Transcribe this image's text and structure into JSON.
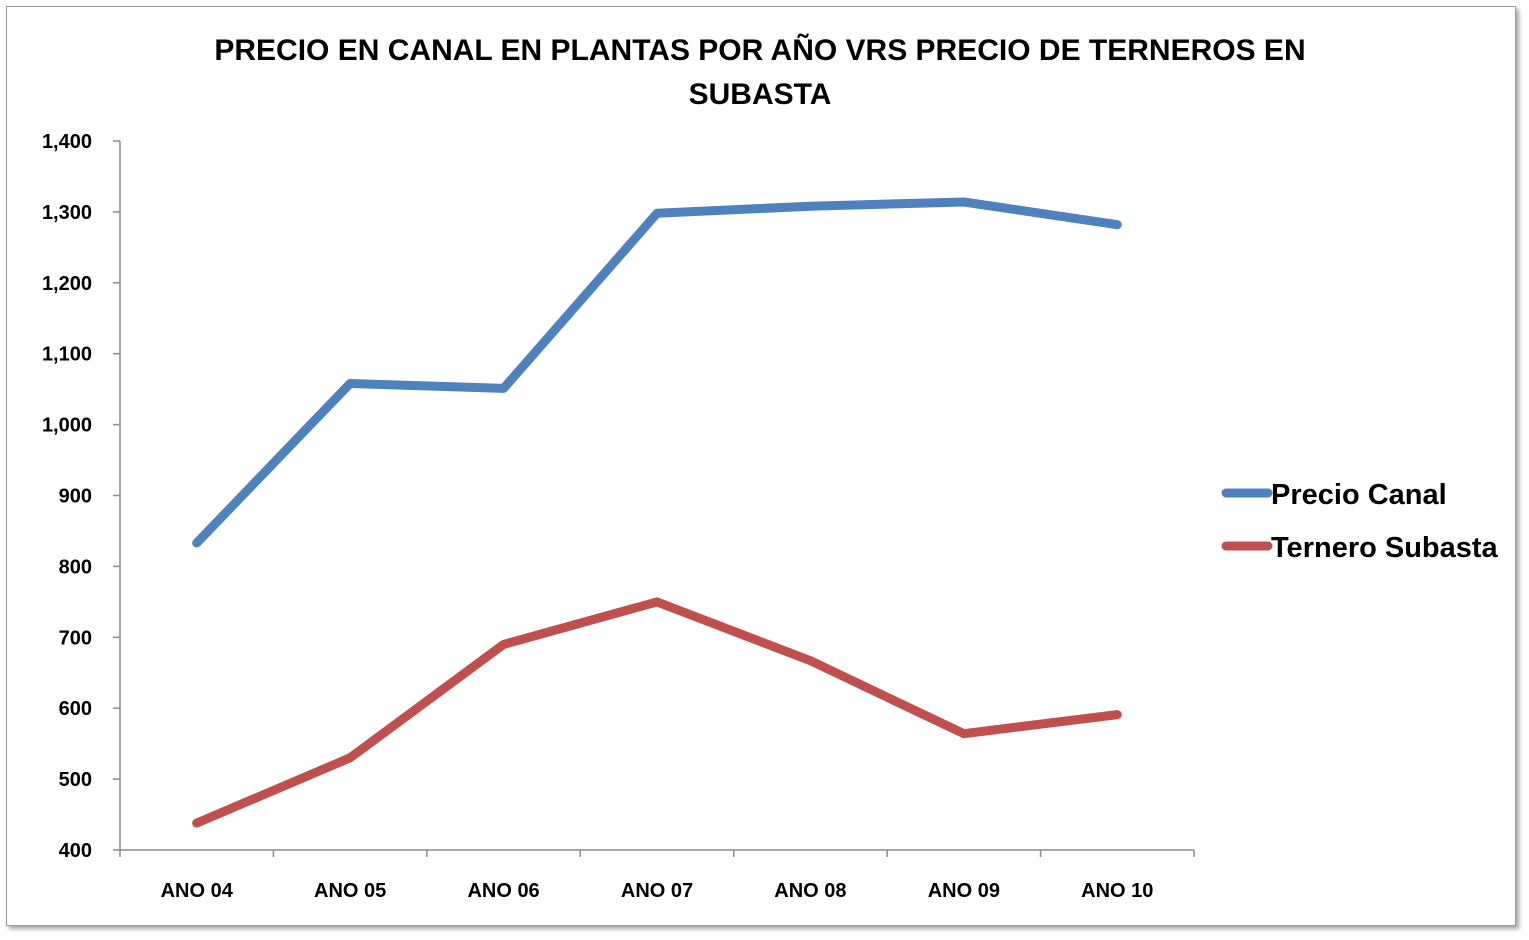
{
  "chart_data": {
    "type": "line",
    "title": "PRECIO EN CANAL EN PLANTAS  POR AÑO  VRS PRECIO DE TERNEROS EN SUBASTA",
    "title_lines": [
      "PRECIO EN CANAL EN PLANTAS  POR AÑO  VRS PRECIO DE TERNEROS EN",
      "SUBASTA"
    ],
    "xlabel": "",
    "ylabel": "",
    "categories": [
      "ANO 04",
      "ANO 05",
      "ANO 06",
      "ANO 07",
      "ANO 08",
      "ANO 09",
      "ANO 10"
    ],
    "ylim": [
      400,
      1400
    ],
    "yticks": [
      400,
      500,
      600,
      700,
      800,
      900,
      1000,
      1100,
      1200,
      1300,
      1400
    ],
    "ytick_labels": [
      "400",
      "500",
      "600",
      "700",
      "800",
      "900",
      "1,000",
      "1,100",
      "1,200",
      "1,300",
      "1,400"
    ],
    "grid": false,
    "legend_position": "right",
    "series": [
      {
        "name": "Precio Canal",
        "color": "#4F81BD",
        "values": [
          833,
          1058,
          1051,
          1298,
          1308,
          1314,
          1282
        ]
      },
      {
        "name": "Ternero Subasta",
        "color": "#C0504D",
        "values": [
          438,
          530,
          690,
          750,
          667,
          564,
          591
        ]
      }
    ]
  }
}
